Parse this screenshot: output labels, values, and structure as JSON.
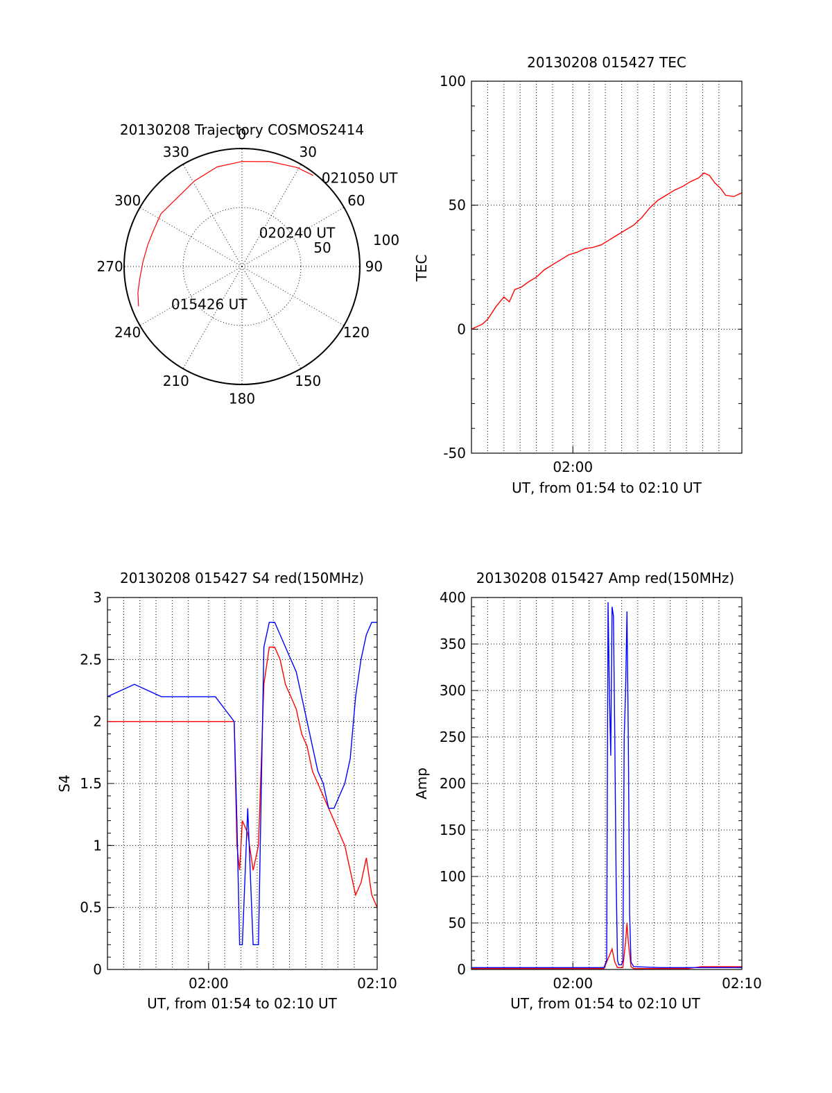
{
  "colors": {
    "red": "#ff0000",
    "blue": "#0000ff",
    "axis": "#000000",
    "grid": "#000000"
  },
  "chart_data": [
    {
      "type": "polar",
      "title": "20130208 Trajectory COSMOS2414",
      "angle_labels": [
        "0",
        "30",
        "60",
        "90",
        "120",
        "150",
        "180",
        "210",
        "240",
        "270",
        "300",
        "330"
      ],
      "radial_labels": [
        "50",
        "100"
      ],
      "rlim": [
        0,
        100
      ],
      "direction": "clockwise, 0 at top",
      "series": [
        {
          "color": "#ff0000",
          "points": [
            {
              "az": 249,
              "r": 94
            },
            {
              "az": 256,
              "r": 91
            },
            {
              "az": 264,
              "r": 87
            },
            {
              "az": 273,
              "r": 84
            },
            {
              "az": 283,
              "r": 82
            },
            {
              "az": 293,
              "r": 81
            },
            {
              "az": 303,
              "r": 82
            },
            {
              "az": 316,
              "r": 80
            },
            {
              "az": 331,
              "r": 83
            },
            {
              "az": 346,
              "r": 87
            },
            {
              "az": 0,
              "r": 89
            },
            {
              "az": 15,
              "r": 92
            },
            {
              "az": 29,
              "r": 96
            },
            {
              "az": 38,
              "r": 98
            }
          ]
        }
      ],
      "annotations": [
        {
          "text": "021050 UT",
          "az": 42,
          "r": 101
        },
        {
          "text": "020240 UT",
          "az": 27,
          "r": 32
        },
        {
          "text": "015426 UT",
          "az": 242,
          "r": 68
        }
      ]
    },
    {
      "type": "line",
      "title": "20130208 015427 TEC",
      "xlabel": "UT, from 01:54 to 02:10 UT",
      "ylabel": "TEC",
      "xlim": [
        0,
        1000
      ],
      "ylim": [
        -50,
        100
      ],
      "x_tick_labels": [
        {
          "x": 375,
          "label": "02:00"
        }
      ],
      "y_ticks": [
        -50,
        0,
        50,
        100
      ],
      "vgrid": [
        60,
        120,
        180,
        240,
        300,
        375,
        435,
        495,
        555,
        615,
        675,
        735,
        795,
        855,
        915
      ],
      "series": [
        {
          "name": "TEC",
          "color": "#ff0000",
          "x": [
            0,
            40,
            60,
            90,
            120,
            140,
            160,
            185,
            210,
            240,
            270,
            300,
            330,
            360,
            390,
            420,
            450,
            480,
            510,
            540,
            570,
            600,
            630,
            660,
            690,
            720,
            750,
            780,
            810,
            840,
            860,
            880,
            900,
            920,
            940,
            970,
            1000
          ],
          "y": [
            0,
            2,
            4,
            9,
            13,
            11,
            16,
            17,
            19,
            21,
            24,
            26,
            28,
            30,
            31,
            32.5,
            33,
            34,
            36,
            38,
            40,
            42,
            45,
            49,
            52,
            54,
            56,
            57.5,
            59.5,
            61,
            63,
            62,
            59,
            57,
            54,
            53.5,
            55
          ]
        }
      ]
    },
    {
      "type": "line",
      "title": "20130208 015427 S4 red(150MHz)",
      "xlabel": "UT, from 01:54 to 02:10 UT",
      "ylabel": "S4",
      "xlim": [
        0,
        1000
      ],
      "ylim": [
        0,
        3
      ],
      "x_tick_labels": [
        {
          "x": 375,
          "label": "02:00"
        },
        {
          "x": 1000,
          "label": "02:10"
        }
      ],
      "y_ticks": [
        0,
        0.5,
        1,
        1.5,
        2,
        2.5,
        3
      ],
      "vgrid": [
        60,
        120,
        180,
        240,
        300,
        375,
        435,
        495,
        555,
        615,
        675,
        735,
        795,
        855,
        915
      ],
      "series": [
        {
          "name": "red",
          "color": "#ff0000",
          "x": [
            0,
            100,
            200,
            300,
            400,
            470,
            480,
            490,
            500,
            520,
            540,
            560,
            580,
            600,
            620,
            640,
            660,
            680,
            700,
            720,
            740,
            760,
            780,
            800,
            820,
            840,
            860,
            880,
            900,
            920,
            940,
            960,
            980,
            1000
          ],
          "y": [
            2.0,
            2.0,
            2.0,
            2.0,
            2.0,
            2.0,
            1.0,
            0.8,
            1.2,
            1.1,
            0.8,
            1.0,
            2.3,
            2.6,
            2.6,
            2.5,
            2.3,
            2.2,
            2.1,
            1.9,
            1.8,
            1.6,
            1.5,
            1.4,
            1.3,
            1.2,
            1.1,
            1.0,
            0.8,
            0.6,
            0.7,
            0.9,
            0.6,
            0.5
          ]
        },
        {
          "name": "blue",
          "color": "#0000ff",
          "x": [
            0,
            100,
            200,
            300,
            400,
            470,
            480,
            490,
            500,
            520,
            540,
            560,
            580,
            600,
            620,
            640,
            660,
            680,
            700,
            720,
            740,
            760,
            780,
            800,
            820,
            840,
            860,
            880,
            900,
            920,
            940,
            960,
            980,
            1000
          ],
          "y": [
            2.2,
            2.3,
            2.2,
            2.2,
            2.2,
            2.0,
            1.2,
            0.2,
            0.2,
            1.3,
            0.2,
            0.2,
            2.6,
            2.8,
            2.8,
            2.7,
            2.6,
            2.5,
            2.4,
            2.2,
            2.0,
            1.8,
            1.6,
            1.5,
            1.3,
            1.3,
            1.4,
            1.5,
            1.7,
            2.2,
            2.5,
            2.7,
            2.8,
            2.8
          ]
        }
      ]
    },
    {
      "type": "line",
      "title": "20130208 015427 Amp red(150MHz)",
      "xlabel": "UT, from 01:54 to 02:10 UT",
      "ylabel": "Amp",
      "xlim": [
        0,
        1000
      ],
      "ylim": [
        0,
        400
      ],
      "x_tick_labels": [
        {
          "x": 375,
          "label": "02:00"
        },
        {
          "x": 1000,
          "label": "02:10"
        }
      ],
      "y_ticks": [
        0,
        50,
        100,
        150,
        200,
        250,
        300,
        350,
        400
      ],
      "vgrid": [
        60,
        120,
        180,
        240,
        300,
        375,
        435,
        495,
        555,
        615,
        675,
        735,
        795,
        855,
        915
      ],
      "series": [
        {
          "name": "red",
          "color": "#ff0000",
          "x": [
            0,
            490,
            500,
            510,
            520,
            530,
            540,
            560,
            570,
            575,
            580,
            590,
            600,
            800,
            850,
            1000
          ],
          "y": [
            1,
            1,
            8,
            15,
            22,
            8,
            2,
            2,
            30,
            50,
            30,
            3,
            1,
            1,
            3,
            3
          ]
        },
        {
          "name": "blue",
          "color": "#0000ff",
          "x": [
            0,
            490,
            500,
            505,
            510,
            515,
            520,
            525,
            530,
            535,
            540,
            545,
            555,
            560,
            565,
            570,
            575,
            580,
            585,
            590,
            600,
            700,
            1000
          ],
          "y": [
            2,
            2,
            10,
            395,
            300,
            230,
            390,
            380,
            250,
            100,
            10,
            5,
            5,
            10,
            250,
            300,
            385,
            250,
            60,
            8,
            3,
            2,
            2
          ]
        }
      ]
    }
  ]
}
